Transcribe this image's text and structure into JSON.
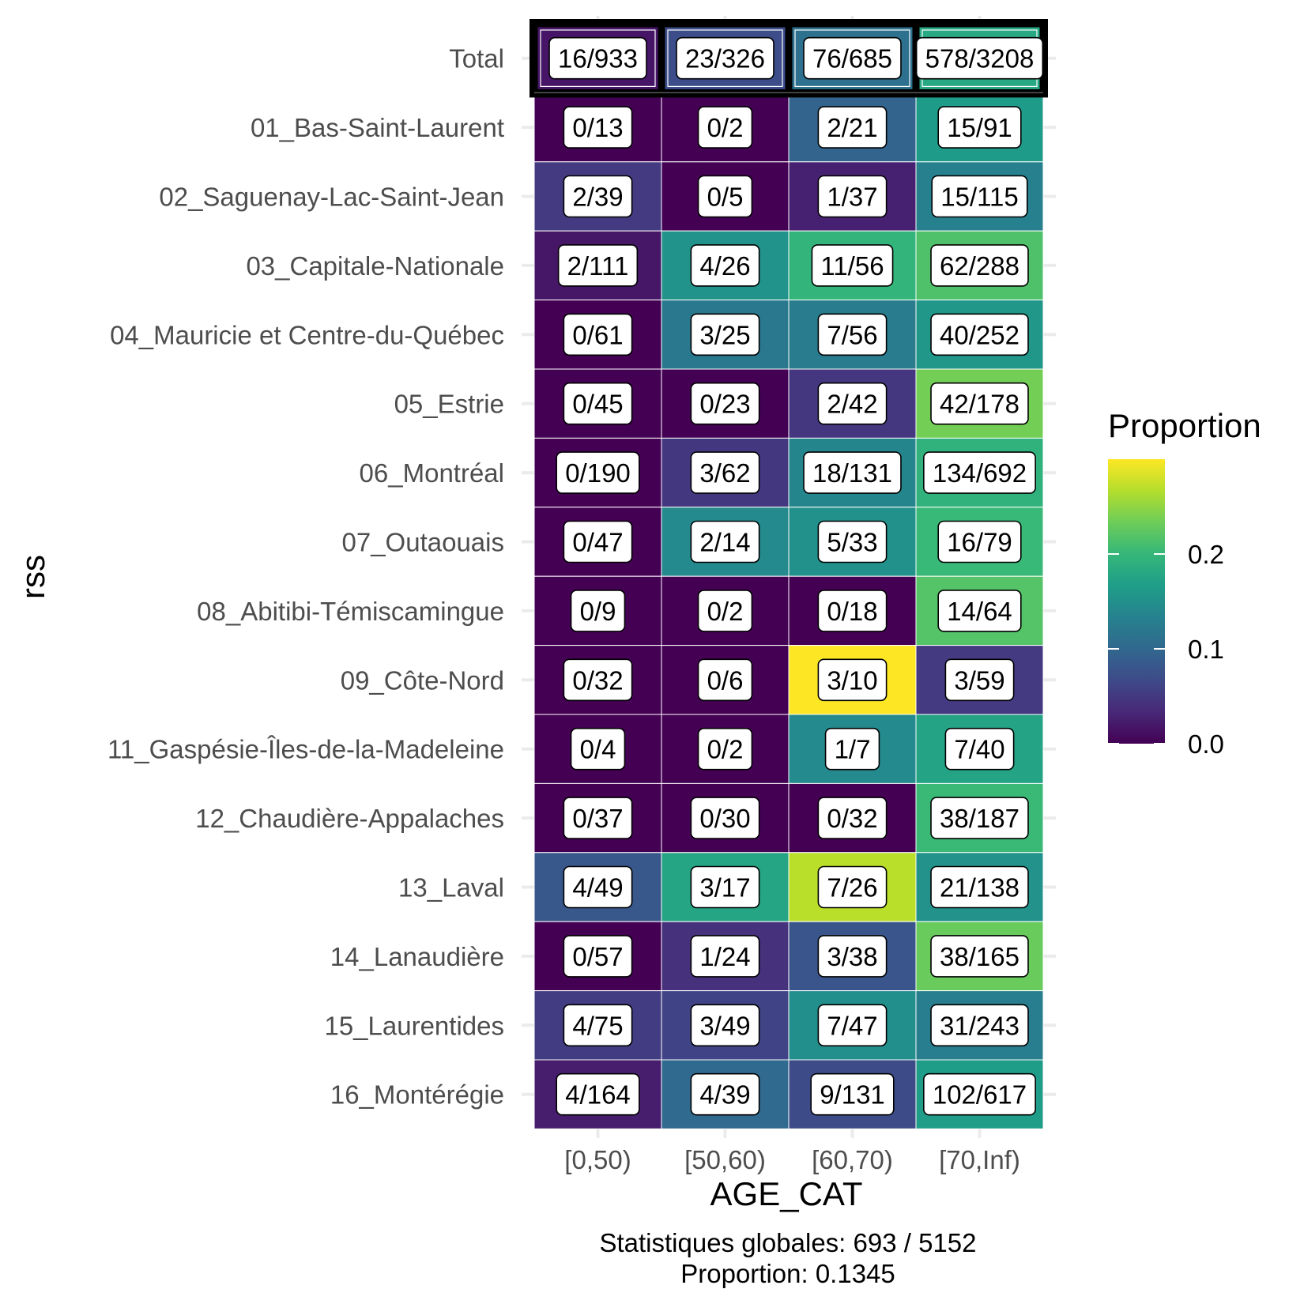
{
  "chart_data": {
    "type": "heatmap",
    "x_categories": [
      "[0,50)",
      "[50,60)",
      "[60,70)",
      "[70,Inf)"
    ],
    "y_categories": [
      "Total",
      "01_Bas-Saint-Laurent",
      "02_Saguenay-Lac-Saint-Jean",
      "03_Capitale-Nationale",
      "04_Mauricie et Centre-du-Québec",
      "05_Estrie",
      "06_Montréal",
      "07_Outaouais",
      "08_Abitibi-Témiscamingue",
      "09_Côte-Nord",
      "11_Gaspésie-Îles-de-la-Madeleine",
      "12_Chaudière-Appalaches",
      "13_Laval",
      "14_Lanaudière",
      "15_Laurentides",
      "16_Montérégie"
    ],
    "cells": [
      [
        "16/933",
        "23/326",
        "76/685",
        "578/3208"
      ],
      [
        "0/13",
        "0/2",
        "2/21",
        "15/91"
      ],
      [
        "2/39",
        "0/5",
        "1/37",
        "15/115"
      ],
      [
        "2/111",
        "4/26",
        "11/56",
        "62/288"
      ],
      [
        "0/61",
        "3/25",
        "7/56",
        "40/252"
      ],
      [
        "0/45",
        "0/23",
        "2/42",
        "42/178"
      ],
      [
        "0/190",
        "3/62",
        "18/131",
        "134/692"
      ],
      [
        "0/47",
        "2/14",
        "5/33",
        "16/79"
      ],
      [
        "0/9",
        "0/2",
        "0/18",
        "14/64"
      ],
      [
        "0/32",
        "0/6",
        "3/10",
        "3/59"
      ],
      [
        "0/4",
        "0/2",
        "1/7",
        "7/40"
      ],
      [
        "0/37",
        "0/30",
        "0/32",
        "38/187"
      ],
      [
        "4/49",
        "3/17",
        "7/26",
        "21/138"
      ],
      [
        "0/57",
        "1/24",
        "3/38",
        "38/165"
      ],
      [
        "4/75",
        "3/49",
        "7/47",
        "31/243"
      ],
      [
        "4/164",
        "4/39",
        "9/131",
        "102/617"
      ]
    ],
    "highlighted_row": "Total",
    "xlabel": "AGE_CAT",
    "ylabel": "rss",
    "legend": {
      "title": "Proportion",
      "ticks": [
        "0.0",
        "0.1",
        "0.2"
      ],
      "tick_values": [
        0,
        0.1,
        0.2
      ],
      "range": [
        0,
        0.3
      ],
      "placement": "right",
      "palette": "viridis"
    },
    "caption_lines": [
      "Statistiques globales: 693 / 5152",
      "Proportion: 0.1345"
    ]
  }
}
